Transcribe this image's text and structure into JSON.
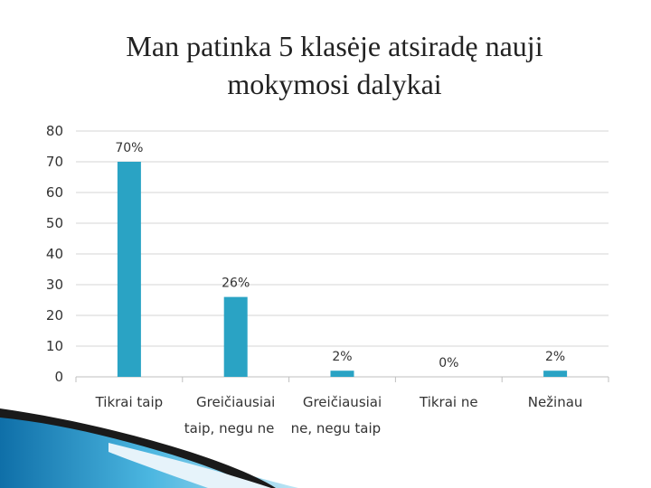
{
  "slide": {
    "title_line1": "Man patinka 5 klasėje atsiradę nauji",
    "title_line2": "mokymosi dalykai"
  },
  "colors": {
    "bar": "#2aa3c4",
    "grid": "#d4d4d4",
    "axis": "#bfbfbf",
    "text": "#333333",
    "deco_blue": "#1b8fc4",
    "deco_dark": "#1a1a1a"
  },
  "chart_data": {
    "type": "bar",
    "title": "",
    "xlabel": "",
    "ylabel": "",
    "categories": [
      [
        "Tikrai taip"
      ],
      [
        "Greičiausiai",
        "taip, negu ne"
      ],
      [
        "Greičiausiai",
        "ne, negu taip"
      ],
      [
        "Tikrai ne"
      ],
      [
        "Nežinau"
      ]
    ],
    "values": [
      70,
      26,
      2,
      0,
      2
    ],
    "data_labels": [
      "70%",
      "26%",
      "2%",
      "0%",
      "2%"
    ],
    "ylim": [
      0,
      80
    ],
    "yticks": [
      0,
      10,
      20,
      30,
      40,
      50,
      60,
      70,
      80
    ],
    "grid": true,
    "legend": "none"
  }
}
